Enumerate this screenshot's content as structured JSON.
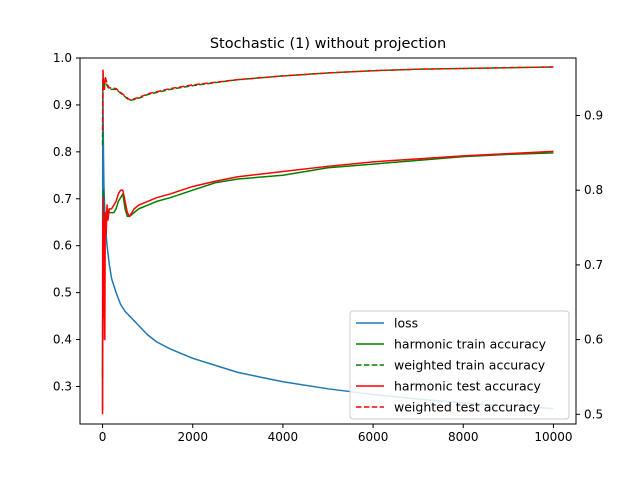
{
  "chart_data": {
    "type": "line",
    "title": "Stochastic (1) without projection",
    "xlabel": "",
    "ylabel": "",
    "xlim": [
      -500,
      10500
    ],
    "ylim_left": [
      0.22,
      1.0
    ],
    "ylim_right": [
      0.487,
      0.977
    ],
    "x_ticks": [
      0,
      2000,
      4000,
      6000,
      8000,
      10000
    ],
    "y_ticks_left": [
      0.3,
      0.4,
      0.5,
      0.6,
      0.7,
      0.8,
      0.9,
      1.0
    ],
    "y_ticks_right": [
      0.5,
      0.6,
      0.7,
      0.8,
      0.9
    ],
    "legend_position": "lower-right",
    "series": [
      {
        "name": "loss",
        "axis": "left",
        "color": "#1f77b4",
        "style": "solid",
        "x": [
          0,
          5,
          10,
          20,
          30,
          50,
          75,
          100,
          150,
          200,
          300,
          400,
          500,
          600,
          800,
          1000,
          1200,
          1500,
          2000,
          2500,
          3000,
          3500,
          4000,
          5000,
          6000,
          7000,
          8000,
          9000,
          10000
        ],
        "y": [
          0.25,
          0.955,
          0.9,
          0.8,
          0.73,
          0.67,
          0.63,
          0.6,
          0.56,
          0.53,
          0.5,
          0.475,
          0.46,
          0.45,
          0.43,
          0.41,
          0.395,
          0.38,
          0.36,
          0.345,
          0.33,
          0.32,
          0.31,
          0.295,
          0.283,
          0.273,
          0.265,
          0.258,
          0.253
        ]
      },
      {
        "name": "harmonic train accuracy",
        "axis": "right",
        "color": "#008000",
        "style": "solid",
        "x": [
          0,
          10,
          20,
          30,
          40,
          60,
          80,
          100,
          150,
          200,
          250,
          300,
          350,
          400,
          450,
          500,
          550,
          600,
          700,
          800,
          1000,
          1200,
          1500,
          2000,
          2500,
          3000,
          4000,
          5000,
          6000,
          7000,
          8000,
          9000,
          10000
        ],
        "y": [
          0.55,
          0.72,
          0.8,
          0.76,
          0.7,
          0.77,
          0.76,
          0.775,
          0.77,
          0.77,
          0.77,
          0.775,
          0.785,
          0.79,
          0.795,
          0.775,
          0.765,
          0.765,
          0.77,
          0.775,
          0.78,
          0.785,
          0.79,
          0.8,
          0.81,
          0.815,
          0.82,
          0.83,
          0.835,
          0.84,
          0.845,
          0.848,
          0.85
        ]
      },
      {
        "name": "weighted train accuracy",
        "axis": "right",
        "color": "#008000",
        "style": "dashed",
        "x": [
          0,
          10,
          20,
          40,
          60,
          100,
          150,
          200,
          300,
          400,
          500,
          600,
          800,
          1000,
          1500,
          2000,
          3000,
          4000,
          5000,
          6000,
          7000,
          8000,
          9000,
          10000
        ],
        "y": [
          0.86,
          0.955,
          0.94,
          0.935,
          0.95,
          0.94,
          0.935,
          0.935,
          0.935,
          0.93,
          0.925,
          0.92,
          0.923,
          0.928,
          0.935,
          0.94,
          0.948,
          0.953,
          0.957,
          0.96,
          0.962,
          0.963,
          0.964,
          0.965
        ]
      },
      {
        "name": "harmonic test accuracy",
        "axis": "right",
        "color": "#ff0000",
        "style": "solid",
        "x": [
          0,
          5,
          10,
          20,
          30,
          40,
          50,
          60,
          80,
          100,
          120,
          150,
          200,
          250,
          300,
          350,
          400,
          450,
          500,
          550,
          600,
          700,
          800,
          1000,
          1200,
          1500,
          2000,
          2500,
          3000,
          4000,
          5000,
          6000,
          7000,
          8000,
          9000,
          10000
        ],
        "y": [
          0.5,
          0.76,
          0.6,
          0.79,
          0.63,
          0.7,
          0.6,
          0.77,
          0.74,
          0.78,
          0.76,
          0.775,
          0.775,
          0.78,
          0.785,
          0.795,
          0.8,
          0.8,
          0.785,
          0.77,
          0.765,
          0.775,
          0.78,
          0.785,
          0.79,
          0.795,
          0.805,
          0.812,
          0.818,
          0.825,
          0.832,
          0.838,
          0.842,
          0.846,
          0.849,
          0.852
        ]
      },
      {
        "name": "weighted test accuracy",
        "axis": "right",
        "color": "#ff0000",
        "style": "dashed",
        "x": [
          0,
          10,
          20,
          40,
          60,
          100,
          150,
          200,
          300,
          400,
          500,
          600,
          800,
          1000,
          1500,
          2000,
          3000,
          4000,
          5000,
          6000,
          7000,
          8000,
          9000,
          10000
        ],
        "y": [
          0.88,
          0.962,
          0.942,
          0.935,
          0.952,
          0.942,
          0.937,
          0.937,
          0.936,
          0.931,
          0.926,
          0.921,
          0.924,
          0.929,
          0.936,
          0.941,
          0.948,
          0.953,
          0.957,
          0.96,
          0.962,
          0.963,
          0.964,
          0.965
        ]
      }
    ]
  }
}
